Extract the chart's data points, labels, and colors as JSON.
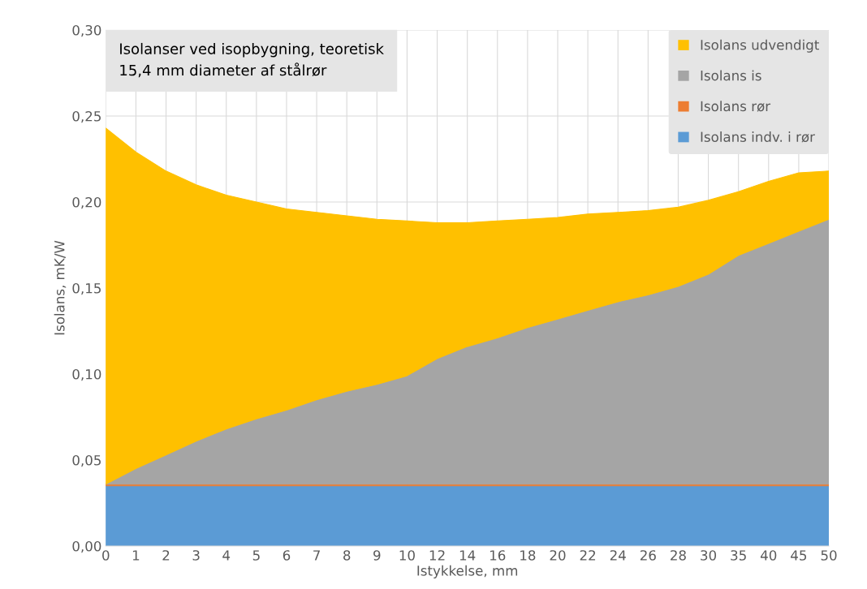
{
  "chart_data": {
    "type": "area",
    "stacked": true,
    "title": "Isolanser ved isopbygning, teoretisk",
    "subtitle": "15,4 mm diameter af stålrør",
    "xlabel": "Istykkelse, mm",
    "ylabel": "Isolans, mK/W",
    "categories": [
      "0",
      "1",
      "2",
      "3",
      "4",
      "5",
      "6",
      "7",
      "8",
      "9",
      "10",
      "12",
      "14",
      "16",
      "18",
      "20",
      "22",
      "24",
      "26",
      "28",
      "30",
      "35",
      "40",
      "45",
      "50"
    ],
    "series": [
      {
        "name": "Isolans indv. i rør",
        "color": "#5b9bd5",
        "values": [
          0.035,
          0.035,
          0.035,
          0.035,
          0.035,
          0.035,
          0.035,
          0.035,
          0.035,
          0.035,
          0.035,
          0.035,
          0.035,
          0.035,
          0.035,
          0.035,
          0.035,
          0.035,
          0.035,
          0.035,
          0.035,
          0.035,
          0.035,
          0.035,
          0.035
        ]
      },
      {
        "name": "Isolans rør",
        "color": "#ed7d31",
        "values": [
          0.001,
          0.001,
          0.001,
          0.001,
          0.001,
          0.001,
          0.001,
          0.001,
          0.001,
          0.001,
          0.001,
          0.001,
          0.001,
          0.001,
          0.001,
          0.001,
          0.001,
          0.001,
          0.001,
          0.001,
          0.001,
          0.001,
          0.001,
          0.001,
          0.001
        ]
      },
      {
        "name": "Isolans is",
        "color": "#a5a5a5",
        "values": [
          0,
          0.009,
          0.017,
          0.025,
          0.032,
          0.038,
          0.043,
          0.049,
          0.054,
          0.058,
          0.063,
          0.073,
          0.08,
          0.085,
          0.091,
          0.096,
          0.101,
          0.106,
          0.11,
          0.115,
          0.122,
          0.133,
          0.14,
          0.147,
          0.154
        ]
      },
      {
        "name": "Isolans udvendigt",
        "color": "#ffc000",
        "values": [
          0.207,
          0.184,
          0.165,
          0.149,
          0.136,
          0.126,
          0.117,
          0.109,
          0.102,
          0.096,
          0.09,
          0.079,
          0.072,
          0.068,
          0.063,
          0.059,
          0.056,
          0.052,
          0.049,
          0.046,
          0.043,
          0.037,
          0.036,
          0.034,
          0.028
        ]
      }
    ],
    "ylim": [
      0,
      0.3
    ],
    "yticks": [
      {
        "value": 0,
        "label": "0,00"
      },
      {
        "value": 0.05,
        "label": "0,05"
      },
      {
        "value": 0.1,
        "label": "0,10"
      },
      {
        "value": 0.15,
        "label": "0,15"
      },
      {
        "value": 0.2,
        "label": "0,20"
      },
      {
        "value": 0.25,
        "label": "0,25"
      },
      {
        "value": 0.3,
        "label": "0,30"
      }
    ],
    "grid": true,
    "legend": "top right"
  }
}
